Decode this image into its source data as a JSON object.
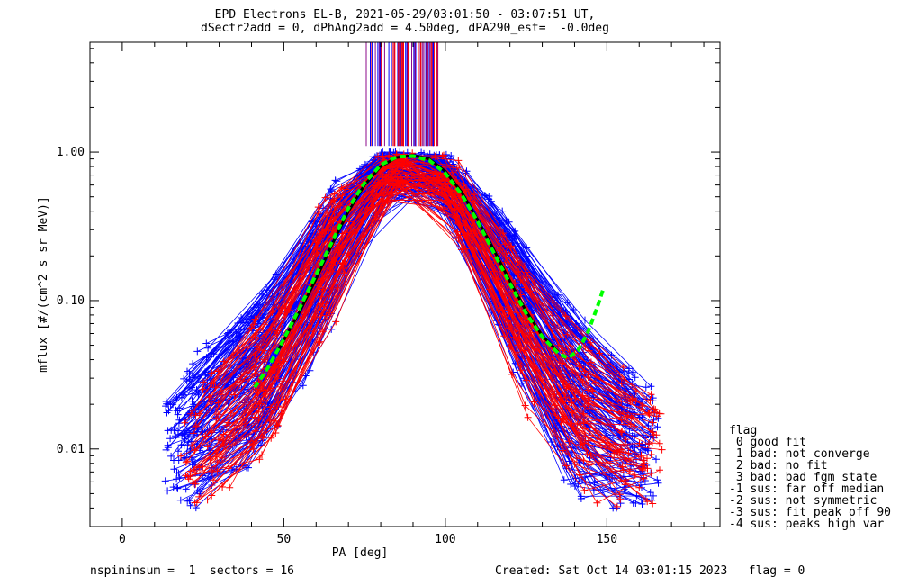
{
  "header": {
    "title_line1": "EPD Electrons EL-B, 2021-05-29/03:01:50 - 03:07:51 UT,",
    "title_line2": "dSectr2add = 0, dPhAng2add = 4.50deg, dPA290_est=  -0.0deg"
  },
  "footer": {
    "left": "nspininsum =  1  sectors = 16",
    "right": "Created: Sat Oct 14 03:01:15 2023   flag = 0"
  },
  "legend": {
    "title": "flag",
    "items": [
      " 0 good fit",
      " 1 bad: not converge",
      " 2 bad: no fit",
      " 3 bad: bad fgm state",
      "-1 sus: far off median",
      "-2 sus: not symmetric",
      "-3 sus: fit peak off 90",
      "-4 sus: peaks high var"
    ]
  },
  "colors": {
    "axis": "#000000",
    "blue_series": "#0000ff",
    "red_series": "#ff0000",
    "purple_lines": "#8b0a8b",
    "fit": "#00ff00",
    "median": "#000000"
  },
  "chart_data": {
    "type": "scatter",
    "xlabel": "PA [deg]",
    "ylabel": "mflux [#/(cm^2 s sr MeV)]",
    "xlim": [
      -10,
      185
    ],
    "ylim": [
      0.003,
      5.5
    ],
    "yscale": "log",
    "x_ticks": [
      0,
      50,
      100,
      150
    ],
    "x_tick_labels": [
      "0",
      "50",
      "100",
      "150"
    ],
    "y_ticks": [
      0.01,
      0.1,
      1.0
    ],
    "y_tick_labels": [
      "0.01",
      "0.10",
      "1.00"
    ],
    "grid": false,
    "legend_position": "right",
    "series": [
      {
        "color": "blue",
        "marker": "+",
        "description_points": "many per-spin pitch-angle distributions, peak ~0.95 near 90 deg",
        "envelope": {
          "x": [
            14,
            20,
            30,
            40,
            50,
            60,
            70,
            80,
            90,
            100,
            110,
            120,
            130,
            140,
            150,
            160,
            165
          ],
          "y_low": [
            0.005,
            0.004,
            0.006,
            0.008,
            0.015,
            0.05,
            0.2,
            0.5,
            0.7,
            0.5,
            0.18,
            0.05,
            0.015,
            0.005,
            0.004,
            0.004,
            0.005
          ],
          "y_high": [
            0.02,
            0.03,
            0.06,
            0.08,
            0.15,
            0.35,
            0.75,
            1.0,
            1.0,
            0.95,
            0.55,
            0.3,
            0.12,
            0.08,
            0.04,
            0.03,
            0.02
          ]
        }
      },
      {
        "color": "red",
        "marker": "+",
        "description_points": "overlapping per-spin pitch-angle distributions",
        "envelope": {
          "x": [
            20,
            30,
            40,
            50,
            60,
            70,
            80,
            90,
            100,
            110,
            120,
            130,
            140,
            150,
            160,
            167
          ],
          "y_low": [
            0.004,
            0.005,
            0.007,
            0.012,
            0.04,
            0.15,
            0.45,
            0.65,
            0.45,
            0.15,
            0.04,
            0.012,
            0.006,
            0.004,
            0.004,
            0.006
          ],
          "y_high": [
            0.015,
            0.04,
            0.07,
            0.12,
            0.45,
            0.7,
            0.95,
            1.05,
            0.95,
            0.5,
            0.25,
            0.1,
            0.06,
            0.04,
            0.025,
            0.022
          ]
        }
      },
      {
        "color": "green",
        "style": "dashed-thick",
        "x": [
          41,
          45,
          50,
          55,
          60,
          65,
          70,
          75,
          80,
          85,
          90,
          95,
          100,
          105,
          110,
          115,
          120,
          125,
          130,
          135,
          138,
          141,
          144,
          147,
          149
        ],
        "y": [
          0.026,
          0.035,
          0.055,
          0.09,
          0.15,
          0.25,
          0.42,
          0.62,
          0.82,
          0.93,
          0.94,
          0.88,
          0.72,
          0.52,
          0.34,
          0.21,
          0.13,
          0.082,
          0.057,
          0.044,
          0.041,
          0.046,
          0.06,
          0.09,
          0.122
        ]
      },
      {
        "color": "black",
        "style": "solid-thick",
        "x": [
          48,
          55,
          60,
          65,
          70,
          75,
          80,
          85,
          90,
          95,
          100,
          105,
          110,
          115,
          120,
          125,
          130,
          135
        ],
        "y": [
          0.045,
          0.085,
          0.14,
          0.24,
          0.4,
          0.6,
          0.8,
          0.92,
          0.95,
          0.9,
          0.74,
          0.54,
          0.35,
          0.22,
          0.135,
          0.085,
          0.058,
          0.045
        ]
      }
    ],
    "vertical_lines": {
      "x_range": [
        74,
        98
      ],
      "y_from": 1.1,
      "y_to": 5.5,
      "colors": [
        "blue",
        "purple",
        "red"
      ]
    }
  }
}
